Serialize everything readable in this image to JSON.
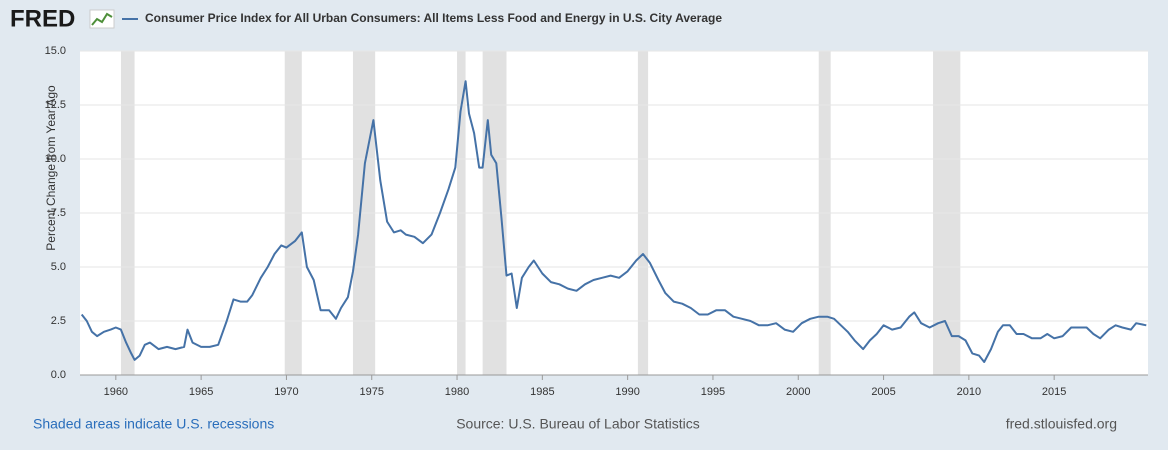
{
  "header": {
    "logo": "FRED"
  },
  "chart_data": {
    "type": "line",
    "y_label": "Percent Change from Year Ago",
    "xlim": [
      1957.9,
      2020.5
    ],
    "xticks": [
      1960,
      1965,
      1970,
      1975,
      1980,
      1985,
      1990,
      1995,
      2000,
      2005,
      2010,
      2015
    ],
    "ylim": [
      0,
      15
    ],
    "yticks": [
      {
        "value": 0,
        "label": "0.0"
      },
      2.5,
      {
        "value": 5,
        "label": "5.0"
      },
      7.5,
      {
        "value": 10,
        "label": "10.0"
      },
      12.5,
      {
        "value": 15,
        "label": "15.0"
      }
    ],
    "grid": true,
    "recession_color": "#e1e1e1",
    "recessions": [
      [
        1960.3,
        1961.1
      ],
      [
        1969.9,
        1970.9
      ],
      [
        1973.9,
        1975.2
      ],
      [
        1980.0,
        1980.5
      ],
      [
        1981.5,
        1982.9
      ],
      [
        1990.6,
        1991.2
      ],
      [
        2001.2,
        2001.9
      ],
      [
        2007.9,
        2009.5
      ]
    ],
    "x": [
      1958.0,
      1958.3,
      1958.6,
      1958.9,
      1959.3,
      1959.7,
      1960.0,
      1960.3,
      1960.6,
      1960.9,
      1961.1,
      1961.4,
      1961.7,
      1962.0,
      1962.5,
      1963.0,
      1963.5,
      1964.0,
      1964.2,
      1964.5,
      1965.0,
      1965.5,
      1966.0,
      1966.5,
      1966.9,
      1967.3,
      1967.7,
      1968.0,
      1968.5,
      1968.9,
      1969.3,
      1969.7,
      1970.0,
      1970.5,
      1970.9,
      1971.2,
      1971.6,
      1972.0,
      1972.5,
      1972.9,
      1973.2,
      1973.6,
      1973.9,
      1974.2,
      1974.6,
      1975.0,
      1975.1,
      1975.5,
      1975.9,
      1976.3,
      1976.7,
      1977.0,
      1977.5,
      1978.0,
      1978.5,
      1979.0,
      1979.5,
      1979.9,
      1980.2,
      1980.5,
      1980.7,
      1981.0,
      1981.3,
      1981.5,
      1981.8,
      1982.0,
      1982.3,
      1982.6,
      1982.9,
      1983.2,
      1983.5,
      1983.8,
      1984.2,
      1984.5,
      1985.0,
      1985.5,
      1986.0,
      1986.5,
      1987.0,
      1987.5,
      1988.0,
      1988.5,
      1989.0,
      1989.5,
      1990.0,
      1990.5,
      1990.9,
      1991.3,
      1991.8,
      1992.2,
      1992.7,
      1993.2,
      1993.7,
      1994.2,
      1994.7,
      1995.2,
      1995.7,
      1996.2,
      1996.7,
      1997.2,
      1997.7,
      1998.2,
      1998.7,
      1999.2,
      1999.7,
      2000.2,
      2000.7,
      2001.2,
      2001.7,
      2002.1,
      2002.5,
      2002.9,
      2003.3,
      2003.8,
      2004.2,
      2004.6,
      2005.0,
      2005.5,
      2006.0,
      2006.5,
      2006.8,
      2007.2,
      2007.7,
      2008.2,
      2008.6,
      2009.0,
      2009.4,
      2009.8,
      2010.2,
      2010.6,
      2010.9,
      2011.3,
      2011.7,
      2012.0,
      2012.4,
      2012.8,
      2013.2,
      2013.7,
      2014.2,
      2014.6,
      2015.0,
      2015.5,
      2016.0,
      2016.5,
      2016.9,
      2017.3,
      2017.7,
      2018.2,
      2018.6,
      2019.0,
      2019.5,
      2019.8,
      2020.4
    ],
    "series": [
      {
        "name": "Consumer Price Index for All Urban Consumers: All Items Less Food and Energy in U.S. City Average",
        "color": "#4572a7",
        "values": [
          2.8,
          2.5,
          2.0,
          1.8,
          2.0,
          2.1,
          2.2,
          2.1,
          1.5,
          1.0,
          0.7,
          0.9,
          1.4,
          1.5,
          1.2,
          1.3,
          1.2,
          1.3,
          2.1,
          1.5,
          1.3,
          1.3,
          1.4,
          2.5,
          3.5,
          3.4,
          3.4,
          3.7,
          4.5,
          5.0,
          5.6,
          6.0,
          5.9,
          6.2,
          6.6,
          5.0,
          4.4,
          3.0,
          3.0,
          2.6,
          3.1,
          3.6,
          4.8,
          6.5,
          9.8,
          11.4,
          11.8,
          9.0,
          7.1,
          6.6,
          6.7,
          6.5,
          6.4,
          6.1,
          6.5,
          7.5,
          8.6,
          9.6,
          12.2,
          13.6,
          12.1,
          11.2,
          9.6,
          9.6,
          11.8,
          10.2,
          9.8,
          7.3,
          4.6,
          4.7,
          3.1,
          4.5,
          5.0,
          5.3,
          4.7,
          4.3,
          4.2,
          4.0,
          3.9,
          4.2,
          4.4,
          4.5,
          4.6,
          4.5,
          4.8,
          5.3,
          5.6,
          5.2,
          4.4,
          3.8,
          3.4,
          3.3,
          3.1,
          2.8,
          2.8,
          3.0,
          3.0,
          2.7,
          2.6,
          2.5,
          2.3,
          2.3,
          2.4,
          2.1,
          2.0,
          2.4,
          2.6,
          2.7,
          2.7,
          2.6,
          2.3,
          2.0,
          1.6,
          1.2,
          1.6,
          1.9,
          2.3,
          2.1,
          2.2,
          2.7,
          2.9,
          2.4,
          2.2,
          2.4,
          2.5,
          1.8,
          1.8,
          1.6,
          1.0,
          0.9,
          0.6,
          1.2,
          2.0,
          2.3,
          2.3,
          1.9,
          1.9,
          1.7,
          1.7,
          1.9,
          1.7,
          1.8,
          2.2,
          2.2,
          2.2,
          1.9,
          1.7,
          2.1,
          2.3,
          2.2,
          2.1,
          2.4,
          2.3
        ]
      }
    ]
  },
  "footer": {
    "note": "Shaded areas indicate U.S. recessions",
    "source": "Source: U.S. Bureau of Labor Statistics",
    "site": "fred.stlouisfed.org"
  }
}
